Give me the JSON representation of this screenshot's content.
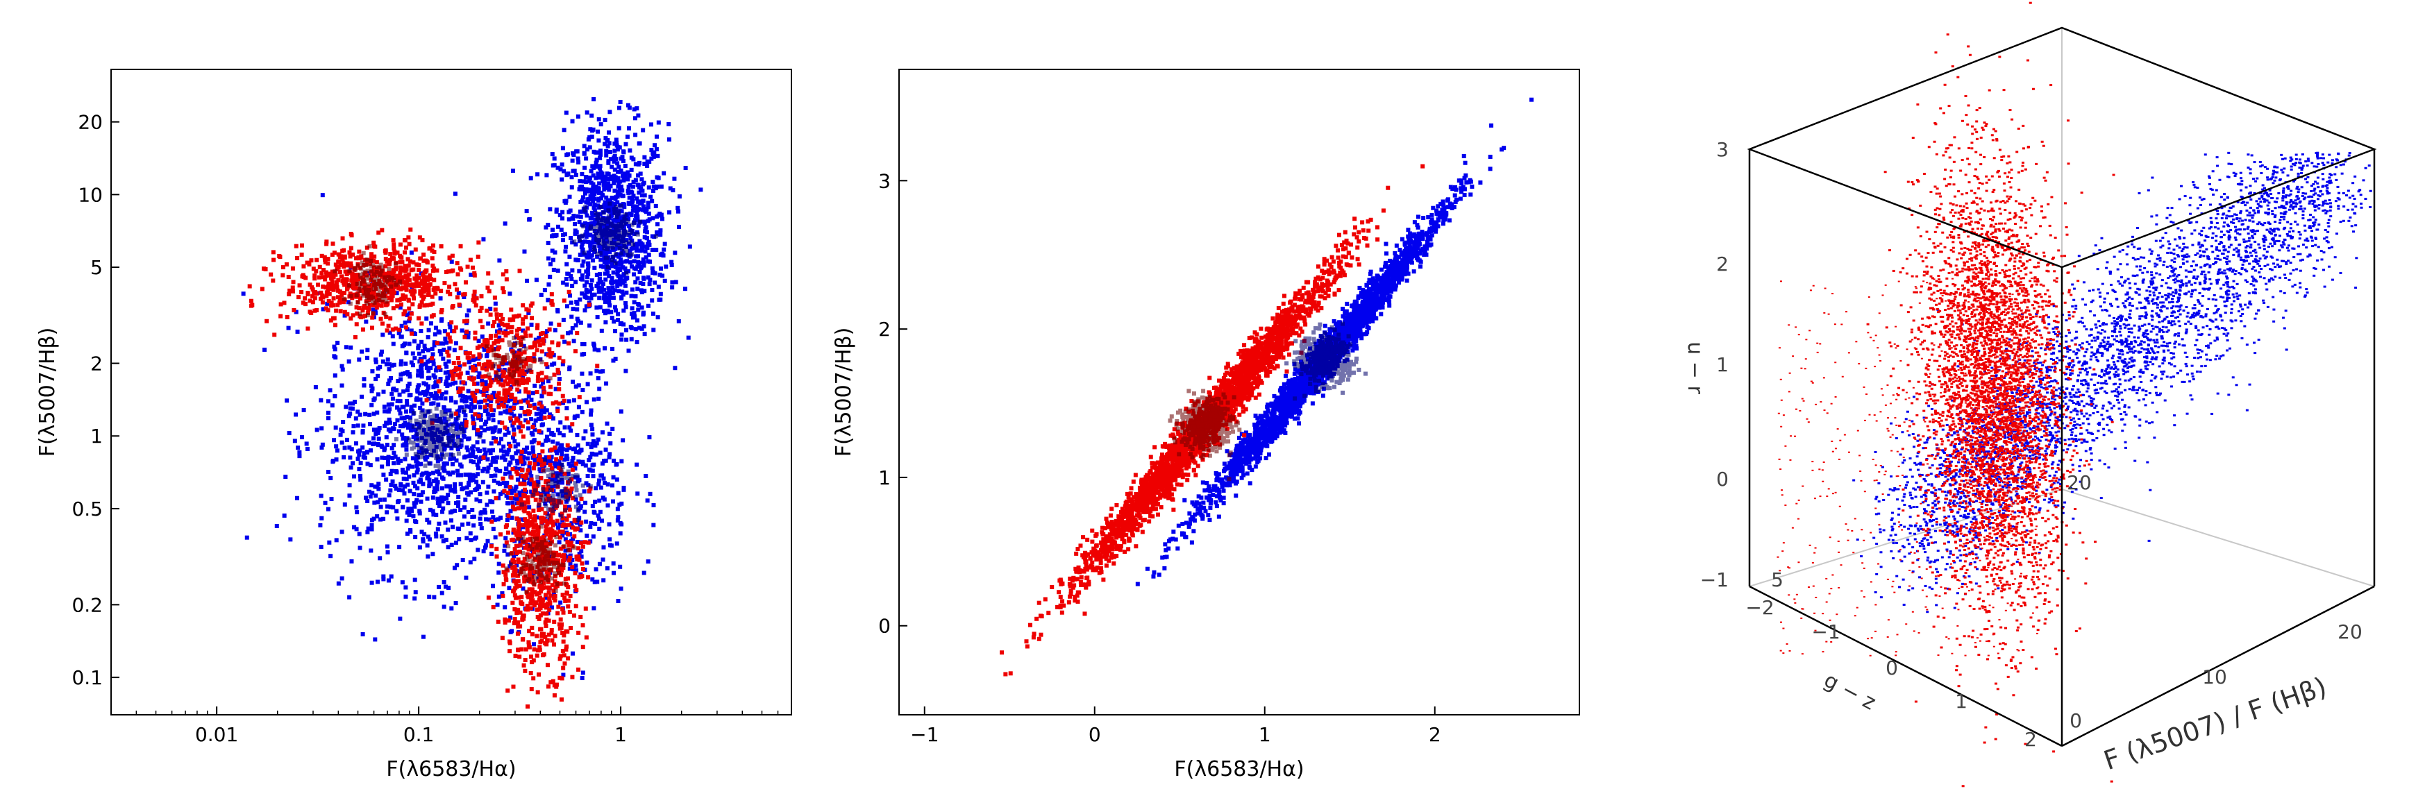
{
  "chart_data": [
    {
      "type": "scatter",
      "title": "",
      "xlabel": "F(λ6583/Hα)",
      "ylabel": "F(λ5007/Hβ)",
      "xscale": "log",
      "yscale": "log",
      "xlim": [
        0.003,
        7
      ],
      "ylim": [
        0.07,
        33
      ],
      "xticks": [
        {
          "v": 0.01,
          "label": "0.01"
        },
        {
          "v": 0.1,
          "label": "0.1"
        },
        {
          "v": 1,
          "label": "1"
        }
      ],
      "yticks": [
        {
          "v": 0.1,
          "label": "0.1"
        },
        {
          "v": 0.2,
          "label": "0.2"
        },
        {
          "v": 0.5,
          "label": "0.5"
        },
        {
          "v": 1,
          "label": "1"
        },
        {
          "v": 2,
          "label": "2"
        },
        {
          "v": 5,
          "label": "5"
        },
        {
          "v": 10,
          "label": "10"
        },
        {
          "v": 20,
          "label": "20"
        }
      ],
      "grid": false,
      "series": [
        {
          "color": "#0000ee",
          "clusters": [
            {
              "x": 0.9,
              "y": 7,
              "sx": 0.14,
              "sy": 0.22,
              "n": 1100
            },
            {
              "x": 0.12,
              "y": 1.0,
              "sx": 0.28,
              "sy": 0.28,
              "n": 1300
            },
            {
              "x": 0.5,
              "y": 0.6,
              "sx": 0.18,
              "sy": 0.25,
              "n": 500
            }
          ]
        },
        {
          "color": "#ee0000",
          "clusters": [
            {
              "x": 0.06,
              "y": 4.3,
              "sx": 0.22,
              "sy": 0.08,
              "n": 700
            },
            {
              "x": 0.4,
              "y": 0.3,
              "sx": 0.1,
              "sy": 0.22,
              "n": 700
            },
            {
              "x": 0.28,
              "y": 2.0,
              "sx": 0.16,
              "sy": 0.14,
              "n": 400
            }
          ]
        }
      ]
    },
    {
      "type": "scatter",
      "title": "",
      "xlabel": "F(λ6583/Hα)",
      "ylabel": "F(λ5007/Hβ)",
      "xlim": [
        -1.15,
        2.85
      ],
      "ylim": [
        -0.6,
        3.75
      ],
      "xticks": [
        {
          "v": -1,
          "label": "−1"
        },
        {
          "v": 0,
          "label": "0"
        },
        {
          "v": 1,
          "label": "1"
        },
        {
          "v": 2,
          "label": "2"
        }
      ],
      "yticks": [
        {
          "v": 0,
          "label": "0"
        },
        {
          "v": 1,
          "label": "1"
        },
        {
          "v": 2,
          "label": "2"
        },
        {
          "v": 3,
          "label": "3"
        }
      ],
      "grid": false,
      "series": [
        {
          "color": "#0000ee",
          "clusters": [
            {
              "x": 1.35,
              "y": 1.8,
              "sx": 0.28,
              "sy": 0.6,
              "rot": 0.72,
              "n": 2600
            }
          ]
        },
        {
          "color": "#ee0000",
          "clusters": [
            {
              "x": 0.65,
              "y": 1.35,
              "sx": 0.36,
              "sy": 0.62,
              "rot": 0.72,
              "n": 2600
            }
          ]
        }
      ]
    },
    {
      "type": "scatter",
      "title": "",
      "xlabel": "F (λ5007) / F (Hβ)",
      "ylabel": "u − r",
      "zlabel": "g − z",
      "xticks_front": [
        {
          "v": 0,
          "label": "0"
        },
        {
          "v": 10,
          "label": "10"
        },
        {
          "v": 20,
          "label": "20"
        }
      ],
      "zticks_left": [
        {
          "v": 3,
          "label": "3"
        },
        {
          "v": 2,
          "label": "2"
        },
        {
          "v": 1,
          "label": "1"
        },
        {
          "v": 0,
          "label": "0"
        },
        {
          "v": -1,
          "label": "−1"
        }
      ],
      "gz_ticks": [
        {
          "v": -2,
          "label": "−2"
        },
        {
          "v": -1,
          "label": "−1"
        },
        {
          "v": 0,
          "label": "0"
        },
        {
          "v": 1,
          "label": "1"
        },
        {
          "v": 2,
          "label": "2"
        }
      ],
      "back_ticks": [
        {
          "v": 5,
          "label": "5"
        },
        {
          "v": 20,
          "label": "20"
        }
      ],
      "grid": false,
      "series": [
        {
          "color": "#0000ee"
        },
        {
          "color": "#ee0000"
        }
      ]
    }
  ]
}
